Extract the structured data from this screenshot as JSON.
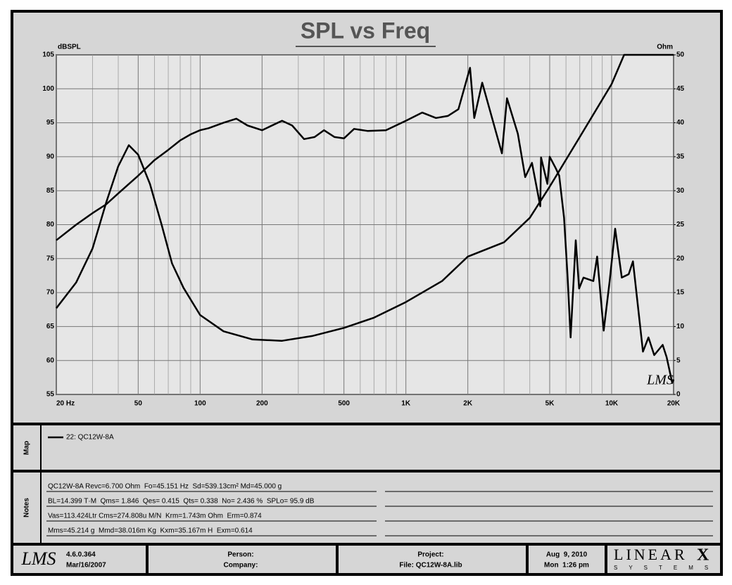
{
  "title": "SPL vs Freq",
  "chart_data": {
    "type": "line",
    "xscale": "log",
    "xlim": [
      20,
      20000
    ],
    "xticks": [
      {
        "value": 20,
        "label": "20 Hz"
      },
      50,
      100,
      200,
      500,
      {
        "value": 1000,
        "label": "1K"
      },
      {
        "value": 2000,
        "label": "2K"
      },
      {
        "value": 5000,
        "label": "5K"
      },
      {
        "value": 10000,
        "label": "10K"
      },
      {
        "value": 20000,
        "label": "20K"
      }
    ],
    "x_minor_ticks": [
      30,
      40,
      60,
      70,
      80,
      90,
      300,
      400,
      600,
      700,
      800,
      900,
      3000,
      4000,
      6000,
      7000,
      8000,
      9000
    ],
    "ylabel": "dBSPL",
    "y2label": "Ohm",
    "ylim": [
      55,
      105
    ],
    "yticks": [
      55,
      60,
      65,
      70,
      75,
      80,
      85,
      90,
      95,
      100,
      105
    ],
    "y2lim": [
      0,
      50
    ],
    "y2ticks": [
      0,
      5,
      10,
      15,
      20,
      25,
      30,
      35,
      40,
      45,
      50
    ],
    "grid": true,
    "series": [
      {
        "color": "#000000",
        "axis": "y",
        "x": [
          20,
          25,
          30,
          35,
          40,
          50,
          60,
          70,
          80,
          90,
          100,
          110,
          130,
          150,
          170,
          200,
          250,
          280,
          320,
          360,
          400,
          450,
          500,
          560,
          650,
          800,
          1000,
          1200,
          1400,
          1600,
          1800,
          2050,
          2150,
          2350,
          2930,
          3100,
          3500,
          3800,
          4100,
          4500,
          4540,
          4870,
          5000,
          5350,
          5560,
          5870,
          6100,
          6320,
          6690,
          6950,
          7300,
          8150,
          8500,
          9150,
          9780,
          10400,
          11200,
          12100,
          12700,
          14200,
          15100,
          16100,
          17700,
          18500,
          19700,
          20000
        ],
        "values": [
          77.7,
          80,
          81.7,
          83,
          84.6,
          87.2,
          89.5,
          91,
          92.4,
          93.3,
          93.9,
          94.2,
          95,
          95.6,
          94.6,
          93.9,
          95.3,
          94.6,
          92.6,
          92.9,
          93.9,
          92.9,
          92.7,
          94.1,
          93.8,
          93.9,
          95.3,
          96.5,
          95.7,
          96,
          97,
          103.1,
          95.7,
          100.9,
          90.5,
          98.6,
          93.4,
          87,
          89.1,
          82.7,
          89.9,
          86,
          90,
          88.3,
          87.2,
          81,
          72.7,
          63.4,
          77.7,
          70.6,
          72.2,
          71.7,
          75.3,
          64.4,
          71.7,
          79.4,
          72.2,
          72.7,
          74.6,
          61.3,
          63.4,
          60.8,
          62.3,
          60.5,
          56.7,
          57.2
        ]
      },
      {
        "color": "#000000",
        "axis": "y2",
        "x": [
          20,
          25,
          30,
          35,
          40,
          45,
          50,
          57,
          65,
          73,
          83,
          100,
          130,
          180,
          250,
          350,
          500,
          700,
          1000,
          1500,
          2000,
          3000,
          4000,
          5000,
          7000,
          10000,
          11500,
          20000
        ],
        "values": [
          12.7,
          16.5,
          21.5,
          28.3,
          33.6,
          36.7,
          35.3,
          31,
          25,
          19.3,
          15.7,
          11.7,
          9.3,
          8.1,
          7.9,
          8.6,
          9.8,
          11.3,
          13.6,
          16.7,
          20.3,
          22.4,
          26,
          30.6,
          37.9,
          45.7,
          50,
          50
        ]
      }
    ]
  },
  "watermark": "LMS",
  "map": {
    "label": "Map",
    "legend": "22: QC12W-8A"
  },
  "notes": {
    "label": "Notes",
    "lines": [
      "QC12W-8A Revc=6.700 Ohm  Fo=45.151 Hz  Sd=539.13cm² Md=45.000 g",
      "BL=14.399 T·M  Qms= 1.846  Qes= 0.415  Qts= 0.338  No= 2.436 %  SPLo= 95.9 dB",
      "Vas=113.424Ltr Cms=274.808u M/N  Krm=1.743m Ohm  Erm=0.874",
      "Mms=45.214 g  Mmd=38.016m Kg  Kxm=35.167m H  Exm=0.614"
    ]
  },
  "footer": {
    "logo": "LMS",
    "version": "4.6.0.364",
    "build_date": "Mar/16/2007",
    "person": "Person:",
    "company": "Company:",
    "project": "Project:",
    "file": "File: QC12W-8A.lib",
    "date": "Aug  9, 2010",
    "time": "Mon  1:26 pm",
    "brand": "LINEAR",
    "brand_x": "X",
    "brand_sub": "SYSTEMS"
  }
}
